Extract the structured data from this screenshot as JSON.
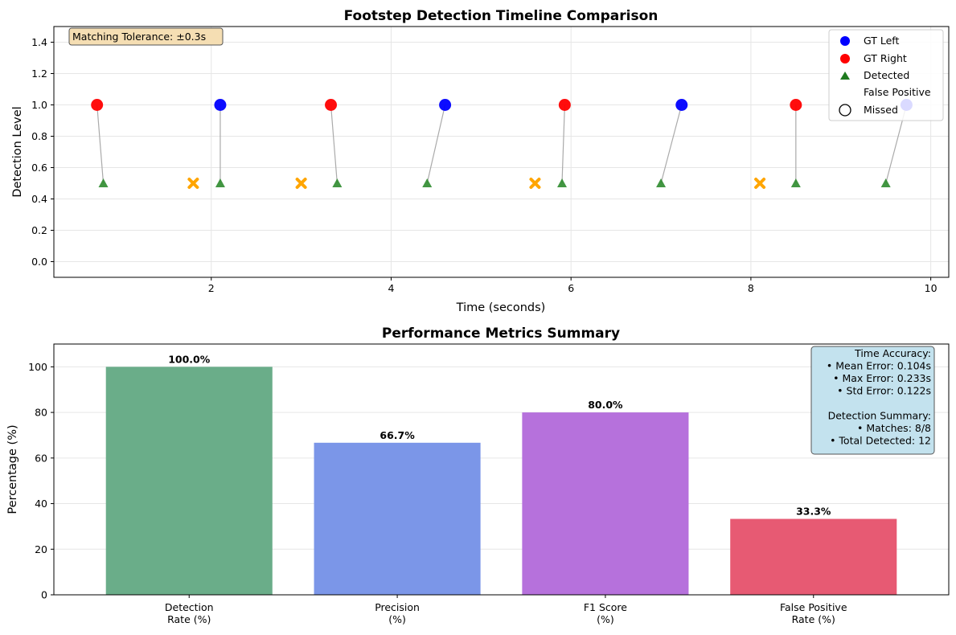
{
  "chart_data": [
    {
      "type": "scatter",
      "title": "Footstep Detection Timeline Comparison",
      "xlabel": "Time (seconds)",
      "ylabel": "Detection Level",
      "xlim": [
        0.25,
        10.2
      ],
      "ylim": [
        -0.1,
        1.5
      ],
      "xticks": [
        2,
        4,
        6,
        8,
        10
      ],
      "yticks": [
        0.0,
        0.2,
        0.4,
        0.6,
        0.8,
        1.0,
        1.2,
        1.4
      ],
      "grid": true,
      "legend_placement": "top-right",
      "annotation": "Matching Tolerance: ±0.3s",
      "colors": {
        "gt_left": "#0000ff",
        "gt_right": "#ff0000",
        "detected": "#2e8b2e",
        "false_positive": "#ffa500",
        "match_line": "#aaaaaa",
        "annotation_bg": "#f5deb3"
      },
      "series": [
        {
          "name": "GT Left",
          "marker": "circle",
          "x": [
            2.1,
            4.6,
            7.23,
            9.73
          ],
          "y": [
            1.0,
            1.0,
            1.0,
            1.0
          ]
        },
        {
          "name": "GT Right",
          "marker": "circle",
          "x": [
            0.73,
            3.33,
            5.93,
            8.5
          ],
          "y": [
            1.0,
            1.0,
            1.0,
            1.0
          ]
        },
        {
          "name": "Detected",
          "marker": "triangle",
          "x": [
            0.8,
            2.1,
            3.4,
            4.4,
            5.9,
            7.0,
            8.5,
            9.5
          ],
          "y": [
            0.5,
            0.5,
            0.5,
            0.5,
            0.5,
            0.5,
            0.5,
            0.5
          ]
        },
        {
          "name": "False Positive",
          "marker": "x",
          "x": [
            1.8,
            3.0,
            5.6,
            8.1
          ],
          "y": [
            0.5,
            0.5,
            0.5,
            0.5
          ]
        },
        {
          "name": "Missed",
          "marker": "hollow-circle",
          "x": [],
          "y": []
        }
      ],
      "matches": [
        {
          "gt": [
            0.73,
            1.0
          ],
          "det": [
            0.8,
            0.5
          ]
        },
        {
          "gt": [
            2.1,
            1.0
          ],
          "det": [
            2.1,
            0.5
          ]
        },
        {
          "gt": [
            3.33,
            1.0
          ],
          "det": [
            3.4,
            0.5
          ]
        },
        {
          "gt": [
            4.6,
            1.0
          ],
          "det": [
            4.4,
            0.5
          ]
        },
        {
          "gt": [
            5.93,
            1.0
          ],
          "det": [
            5.9,
            0.5
          ]
        },
        {
          "gt": [
            7.23,
            1.0
          ],
          "det": [
            7.0,
            0.5
          ]
        },
        {
          "gt": [
            8.5,
            1.0
          ],
          "det": [
            8.5,
            0.5
          ]
        },
        {
          "gt": [
            9.73,
            1.0
          ],
          "det": [
            9.5,
            0.5
          ]
        }
      ]
    },
    {
      "type": "bar",
      "title": "Performance Metrics Summary",
      "xlabel": "",
      "ylabel": "Percentage (%)",
      "ylim": [
        0,
        110
      ],
      "yticks": [
        0,
        20,
        40,
        60,
        80,
        100
      ],
      "grid": true,
      "categories": [
        "Detection\nRate (%)",
        "Precision\n(%)",
        "F1 Score\n(%)",
        "False Positive\nRate (%)"
      ],
      "values": [
        100.0,
        66.7,
        80.0,
        33.3
      ],
      "value_labels": [
        "100.0%",
        "66.7%",
        "80.0%",
        "33.3%"
      ],
      "colors": [
        "#6aad89",
        "#7b96e8",
        "#b671dc",
        "#e75a73"
      ],
      "annotation_bg": "#c3e2ee",
      "info_box": [
        "Time Accuracy:",
        "• Mean Error: 0.104s",
        "• Max Error: 0.233s",
        "• Std Error: 0.122s",
        "",
        "Detection Summary:",
        "• Matches: 8/8",
        "• Total Detected: 12"
      ]
    }
  ]
}
